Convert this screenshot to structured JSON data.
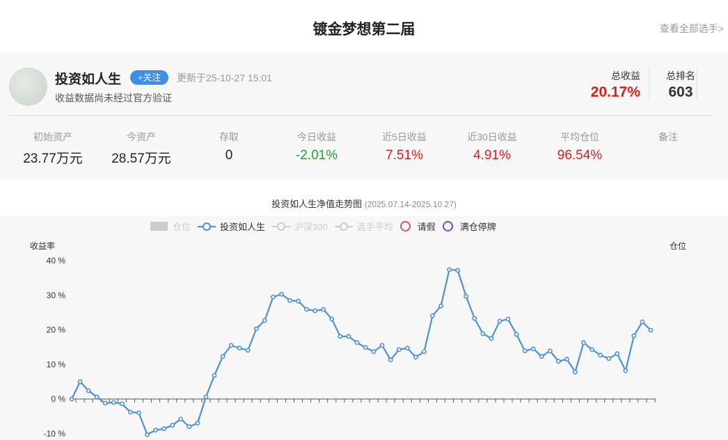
{
  "header": {
    "title": "镀金梦想第二届",
    "view_all": "查看全部选手>"
  },
  "profile": {
    "name": "投资如人生",
    "follow": "+关注",
    "updated": "更新于25-10-27 15:01",
    "note": "收益数据尚未经过官方验证",
    "total_return_label": "总收益",
    "total_return": "20.17%",
    "rank_label": "总排名",
    "rank": "603"
  },
  "stats": [
    {
      "label": "初始资产",
      "value": "23.77万元"
    },
    {
      "label": "今资产",
      "value": "28.57万元"
    },
    {
      "label": "存取",
      "value": "0"
    },
    {
      "label": "今日收益",
      "value": "-2.01%"
    },
    {
      "label": "近5日收益",
      "value": "7.51%"
    },
    {
      "label": "近30日收益",
      "value": "4.91%"
    },
    {
      "label": "平均仓位",
      "value": "96.54%"
    },
    {
      "label": "备注",
      "value": ""
    }
  ],
  "colors": {
    "accent": "#3d8ee6",
    "up": "#d8201d",
    "down": "#1aab2c",
    "line": "#4a90d6",
    "leave": "#d9536f",
    "suspend": "#7b45c8"
  },
  "chart_data": {
    "type": "line",
    "title": "投资如人生净值走势图",
    "subtitle": "(2025.07.14-2025.10.27)",
    "ylabel": "收益率",
    "y2label": "仓位",
    "ylim": [
      -10,
      40
    ],
    "yticks": [
      "40 %",
      "30 %",
      "20 %",
      "10 %",
      "0 %",
      "-10 %"
    ],
    "legend": [
      {
        "name": "仓位",
        "icon": "square",
        "active": false
      },
      {
        "name": "投资如人生",
        "icon": "line-circle",
        "active": true
      },
      {
        "name": "沪深300",
        "icon": "line-circle",
        "active": false
      },
      {
        "name": "选手平均",
        "icon": "line-circle",
        "active": false
      },
      {
        "name": "请假",
        "icon": "ring",
        "active": true
      },
      {
        "name": "满仓停牌",
        "icon": "ring",
        "active": true
      }
    ],
    "legend_placement": "top",
    "series": [
      {
        "name": "投资如人生",
        "values": [
          0,
          5.0,
          2.4,
          0.6,
          -1.2,
          -1.0,
          -1.4,
          -3.8,
          -4.0,
          -10.3,
          -9.0,
          -8.6,
          -7.6,
          -5.8,
          -8.0,
          -7.0,
          0.6,
          6.8,
          12.3,
          15.5,
          14.7,
          14.1,
          20.3,
          22.7,
          29.5,
          30.3,
          28.5,
          28.3,
          25.9,
          25.5,
          25.9,
          23.1,
          18.1,
          18.1,
          16.3,
          14.9,
          13.7,
          15.5,
          11.3,
          14.3,
          14.7,
          12.1,
          13.7,
          24.1,
          26.9,
          37.4,
          37.2,
          29.7,
          23.3,
          18.9,
          17.5,
          22.5,
          23.1,
          18.7,
          13.9,
          14.5,
          12.3,
          13.9,
          10.9,
          11.5,
          7.8,
          16.3,
          14.3,
          12.7,
          11.7,
          13.1,
          8.2,
          18.3,
          22.3,
          19.9
        ]
      }
    ]
  }
}
